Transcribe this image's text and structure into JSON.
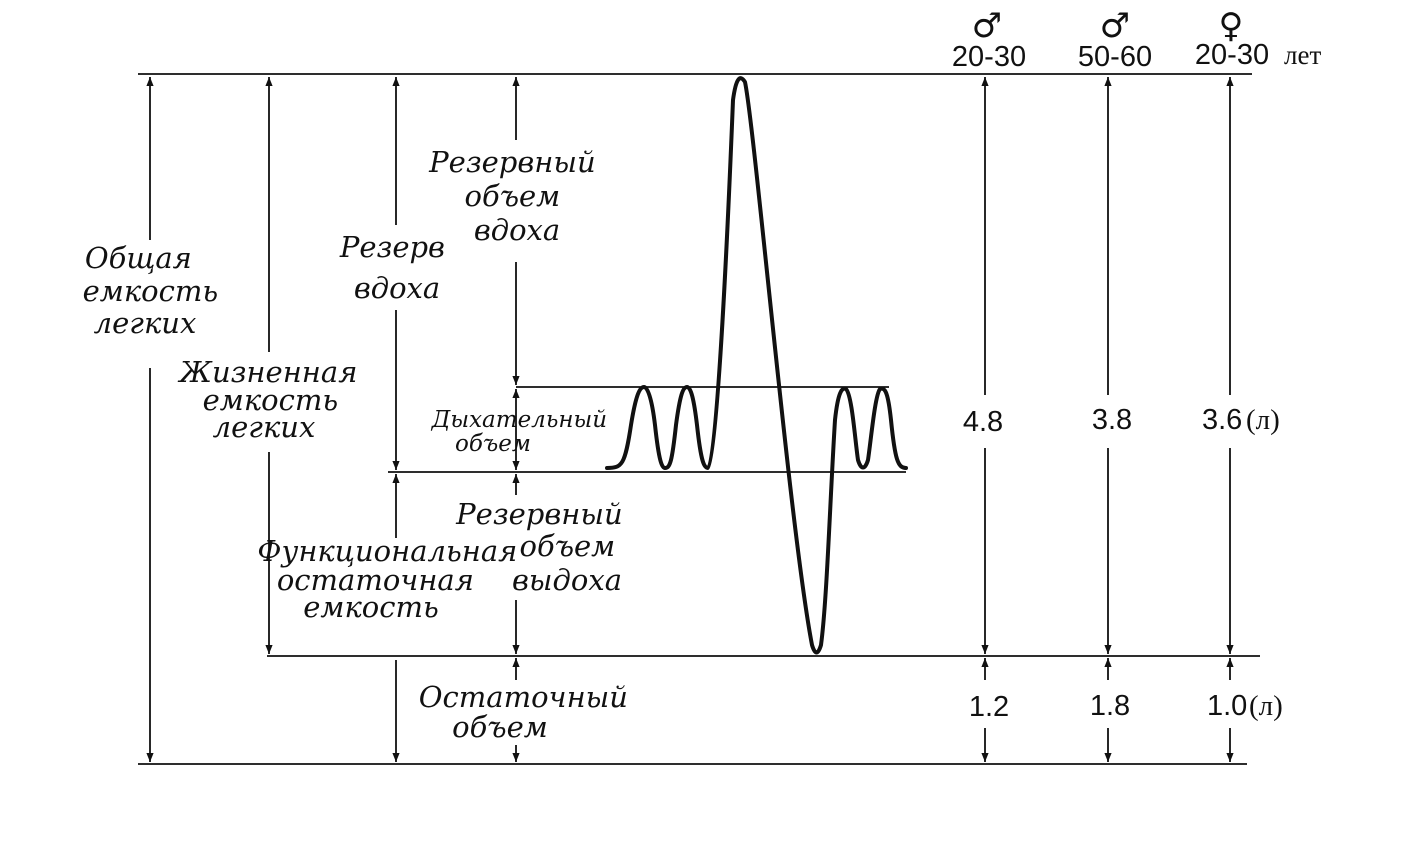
{
  "labels": {
    "total_capacity": [
      "Общая",
      "емкость",
      "легких"
    ],
    "vital_capacity": [
      "Жизненная",
      "емкость",
      "легких"
    ],
    "inspiratory_reserve": [
      "Резерв",
      "вдоха"
    ],
    "inspiratory_reserve_volume": [
      "Резервный",
      "объем",
      "вдоха"
    ],
    "tidal_volume": [
      "Дыхательный",
      "объем"
    ],
    "expiratory_reserve_volume": [
      "Резервный",
      "объем",
      "выдоха"
    ],
    "functional_residual": [
      "Функциональная",
      "остаточная",
      "емкость"
    ],
    "residual_volume": [
      "Остаточный",
      "объем"
    ]
  },
  "groups": [
    {
      "symbol": "♂",
      "age": "20-30",
      "vital": "4.8",
      "residual": "1.2"
    },
    {
      "symbol": "♂",
      "age": "50-60",
      "vital": "3.8",
      "residual": "1.8"
    },
    {
      "symbol": "♀",
      "age": "20-30",
      "vital": "3.6",
      "residual": "1.0"
    }
  ],
  "units": {
    "age": "лет",
    "volume": "(л)"
  }
}
